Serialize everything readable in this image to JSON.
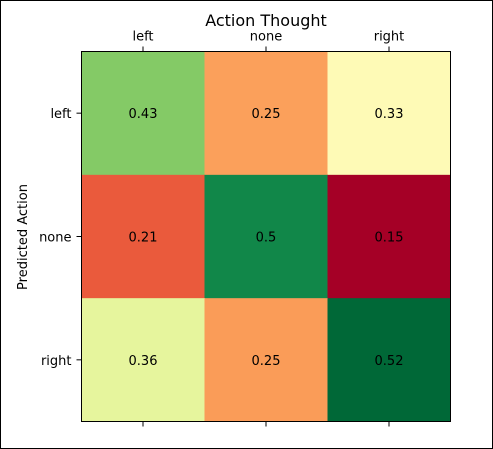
{
  "chart_data": {
    "type": "heatmap",
    "title": "Action Thought",
    "xlabel": "",
    "ylabel": "Predicted Action",
    "x_categories": [
      "left",
      "none",
      "right"
    ],
    "y_categories": [
      "left",
      "none",
      "right"
    ],
    "x_tick_position": "top",
    "colormap": "RdYlGn",
    "values": [
      [
        0.43,
        0.25,
        0.33
      ],
      [
        0.21,
        0.5,
        0.15
      ],
      [
        0.36,
        0.25,
        0.52
      ]
    ],
    "value_labels": [
      [
        "0.43",
        "0.25",
        "0.33"
      ],
      [
        "0.21",
        "0.5",
        "0.15"
      ],
      [
        "0.36",
        "0.25",
        "0.52"
      ]
    ],
    "cell_colors": [
      [
        "#84ca66",
        "#fba05b",
        "#fefab6"
      ],
      [
        "#ea5a3c",
        "#118749",
        "#a50026"
      ],
      [
        "#e6f59d",
        "#fa9c58",
        "#006837"
      ]
    ]
  }
}
